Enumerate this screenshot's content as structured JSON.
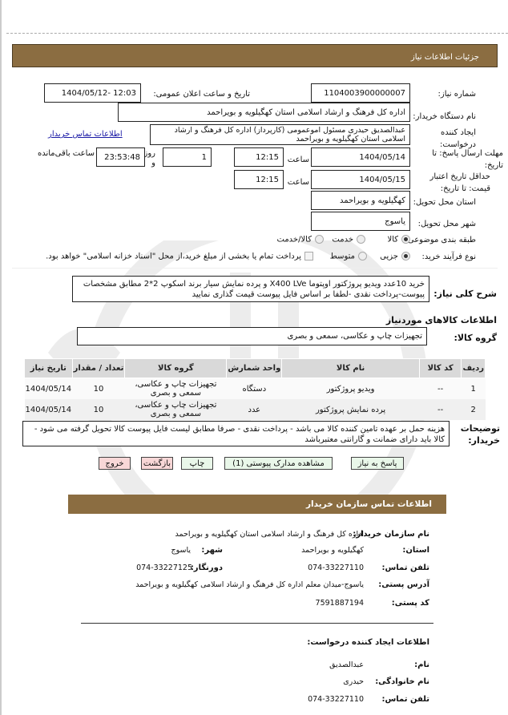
{
  "header": {
    "title": "جزئیات اطلاعات نیاز"
  },
  "form": {
    "need_number_label": "شماره نیاز:",
    "need_number": "1104003900000007",
    "announce_label": "تاریخ و ساعت اعلان عمومی:",
    "announce_value": "1404/05/12- 12:03",
    "buyer_org_label": "نام دستگاه خریدار:",
    "buyer_org": "اداره کل فرهنگ و ارشاد اسلامی استان  کهگیلویه و بویراحمد",
    "creator_label": "ایجاد کننده درخواست:",
    "creator": "عبدالصدیق  حیدری مسئول  اموعمومی  (کارپرداز) اداره کل  فرهنگ و ارشاد اسلامی استان کهگیلویه و بویراحمد",
    "contact_link": "اطلاعات تماس خریدار",
    "deadline_label": "مهلت ارسال  پاسخ: تا تاریخ:",
    "deadline_date": "1404/05/14",
    "time_label": "ساعت",
    "deadline_time": "12:15",
    "days": "1",
    "days_label": "روز و",
    "remaining": "23:53:48",
    "remaining_label": "ساعت باقی‌مانده",
    "validity_label": "حداقل  تاریخ  اعتبار قیمت: تا تاریخ:",
    "validity_date": "1404/05/15",
    "validity_time": "12:15",
    "province_label": "استان محل تحویل:",
    "province": "کهگیلویه و بویراحمد",
    "city_label": "شهر محل تحویل:",
    "city": "یاسوج",
    "category_label": "طبقه بندی موضوعی:",
    "category_options": [
      "کالا",
      "خدمت",
      "کالا/خدمت"
    ],
    "category_selected": "کالا",
    "process_label": "نوع فرآیند خرید:",
    "process_options": [
      "جزیی",
      "متوسط"
    ],
    "process_selected": "جزیی",
    "payment_note": "پرداخت تمام یا بخشی از مبلغ خرید،از محل \"اسناد خزانه اسلامی\" خواهد بود."
  },
  "description": {
    "label": "شرح کلی نیاز:",
    "line1": "خرید 10عدد ویدیو  پروژکتور اوپتوما  X400 LVe و پرده نمایش سیار برند اسکوپ 2*2 مطابق  مشخصات",
    "line2": "پیوست-پرداخت نقدی -لطفا بر اساس فایل پیوست قیمت گذاری نمایید"
  },
  "goods": {
    "title": "اطلاعات کالاهای موردنیاز",
    "group_label": "گروه کالا:",
    "group": "تجهیزات چاپ و عکاسی، سمعی و  بصری",
    "columns": [
      "ردیف",
      "کد کالا",
      "نام کالا",
      "واحد شمارش",
      "گروه کالا",
      "تعداد / مقدار",
      "تاریخ نیاز"
    ],
    "rows": [
      [
        "1",
        "--",
        "ویدیو پروژکتور",
        "دستگاه",
        "تجهیزات چاپ و عکاسی، سمعی و بصری",
        "10",
        "1404/05/14"
      ],
      [
        "2",
        "--",
        "پرده  نمایش پروژکتور",
        "عدد",
        "تجهیزات چاپ و عکاسی، سمعی و بصری",
        "10",
        "1404/05/14"
      ]
    ]
  },
  "notes": {
    "label": "توضیحات خریدار:",
    "line1": "هزینه حمل بر عهده تامین کننده کالا می باشد - پرداخت نقدی - صرفا مطابق لیست فایل پیوست کالا تحویل گرفته می شود -",
    "line2": "کالا باید دارای ضمانت و گارانتی معتبرباشد"
  },
  "buttons": {
    "reply": "پاسخ به نیاز",
    "attachments": "مشاهده مدارک پیوستی (1)",
    "print": "چاپ",
    "back": "بازگشت",
    "exit": "خروج"
  },
  "contact": {
    "title": "اطلاعات تماس سازمان خریدار",
    "org_label": "نام سازمان خریدار:",
    "org": "اداره کل فرهنگ و ارشاد اسلامی استان کهگیلویه و بویراحمد",
    "province_label": "استان:",
    "province": "کهگیلویه و بویراحمد",
    "city_label": "شهر:",
    "city": "یاسوج",
    "phone_label": "تلفن تماس:",
    "phone": "074-33227110",
    "fax_label": "دورنگار:",
    "fax": "074-33227125",
    "address_label": "آدرس پستی:",
    "address": "یاسوج-میدان معلم   اداره کل فرهنگ و ارشاد اسلامی کهگیلویه و بویراحمد",
    "postal_label": "کد پستی:",
    "postal": "7591887194",
    "creator_title": "اطلاعات ایجاد کننده درخواست:",
    "name_label": "نام:",
    "name": "عبدالصدیق",
    "family_label": "نام خانوادگی:",
    "family": "حیدری",
    "creator_phone_label": "تلفن تماس:",
    "creator_phone": "074-33227110"
  },
  "colors": {
    "header": "#8b6d41",
    "green_button": "#e9f7e9",
    "red_button": "#f8d7d7"
  }
}
